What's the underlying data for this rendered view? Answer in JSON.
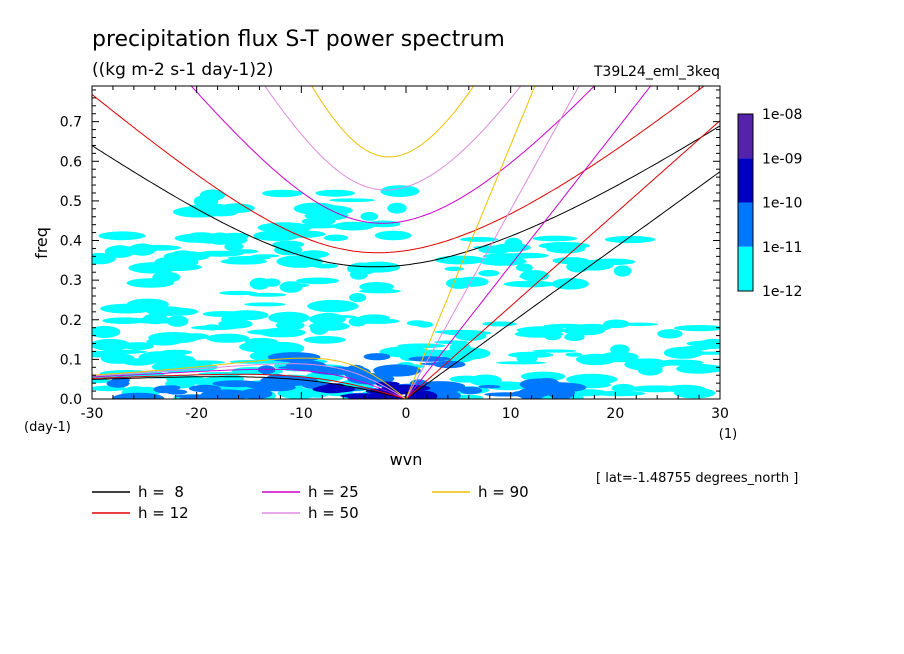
{
  "chart_data": {
    "type": "heatmap",
    "title": "precipitation flux S-T power spectrum",
    "subtitle": "((kg m-2 s-1 day-1)2)",
    "experiment": "T39L24_eml_3keq",
    "xlabel": "wvn",
    "xunit": "(1)",
    "ylabel": "freq",
    "yunit": "(day-1)",
    "annotation": "[ lat=-1.48755 degrees_north ]",
    "xlim": [
      -30,
      30
    ],
    "ylim": [
      0,
      0.79
    ],
    "xticks": [
      "-30",
      "-20",
      "-10",
      "0",
      "10",
      "20",
      "30"
    ],
    "yticks": [
      "0.0",
      "0.1",
      "0.2",
      "0.3",
      "0.4",
      "0.5",
      "0.6",
      "0.7"
    ],
    "colorbar": {
      "labels": [
        "1e-08",
        "1e-09",
        "1e-10",
        "1e-11",
        "1e-12"
      ],
      "levels": [
        1e-12,
        1e-11,
        1e-10,
        1e-09,
        1e-08
      ],
      "colors": [
        "#00ffff",
        "#0077ff",
        "#0000c0",
        "#5522aa"
      ]
    },
    "dispersion_curves": [
      {
        "name": "h =  8",
        "h": 8,
        "color": "#000000"
      },
      {
        "name": "h = 12",
        "h": 12,
        "color": "#e00000"
      },
      {
        "name": "h = 25",
        "h": 25,
        "color": "#cc00cc"
      },
      {
        "name": "h = 50",
        "h": 50,
        "color": "#e08ae0"
      },
      {
        "name": "h = 90",
        "h": 90,
        "color": "#f0c000"
      }
    ],
    "power_regions": [
      {
        "level": 1,
        "x0": -30,
        "x1": -2,
        "y0": 0.0,
        "y1": 0.42
      },
      {
        "level": 1,
        "x0": -30,
        "x1": 30,
        "y0": 0.0,
        "y1": 0.12
      },
      {
        "level": 1,
        "x0": 0,
        "x1": 30,
        "y0": 0.1,
        "y1": 0.2
      },
      {
        "level": 1,
        "x0": -20,
        "x1": 0,
        "y0": 0.4,
        "y1": 0.53
      },
      {
        "level": 1,
        "x0": 3,
        "x1": 22,
        "y0": 0.28,
        "y1": 0.41
      },
      {
        "level": 2,
        "x0": -16,
        "x1": 5,
        "y0": 0.0,
        "y1": 0.11
      },
      {
        "level": 2,
        "x0": -28,
        "x1": -15,
        "y0": 0.0,
        "y1": 0.05
      },
      {
        "level": 2,
        "x0": 5,
        "x1": 15,
        "y0": 0.0,
        "y1": 0.04
      },
      {
        "level": 3,
        "x0": -8,
        "x1": 2,
        "y0": 0.0,
        "y1": 0.04
      }
    ]
  }
}
